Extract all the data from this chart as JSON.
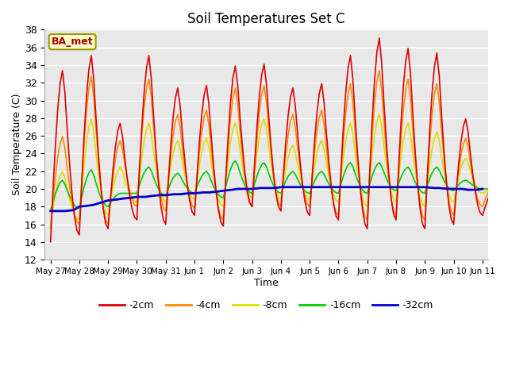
{
  "title": "Soil Temperatures Set C",
  "xlabel": "Time",
  "ylabel": "Soil Temperature (C)",
  "ylim": [
    12,
    38
  ],
  "yticks": [
    12,
    14,
    16,
    18,
    20,
    22,
    24,
    26,
    28,
    30,
    32,
    34,
    36,
    38
  ],
  "annotation": "BA_met",
  "x_tick_labels": [
    "May 27",
    "May 28",
    "May 29",
    "May 30",
    "May 31",
    "Jun 1",
    "Jun 2",
    "Jun 3",
    "Jun 4",
    "Jun 5",
    "Jun 6",
    "Jun 7",
    "Jun 8",
    "Jun 9",
    "Jun 10",
    "Jun 11"
  ],
  "bg_color": "#e8e8e8",
  "grid_color": "#ffffff",
  "series": {
    "-2cm": {
      "color": "#dd0000",
      "lw": 1.2,
      "peaks": [
        14.2,
        33.5,
        14.8,
        35.2,
        15.5,
        31.5,
        16.5,
        34.0,
        15.8,
        34.2,
        17.0,
        31.5,
        17.5,
        32.0,
        16.5,
        35.2,
        15.5,
        37.2,
        16.5,
        36.0,
        15.5,
        35.5,
        16.0,
        28.0,
        17.8,
        26.5,
        17.8,
        26.5,
        18.0,
        29.5,
        17.0,
        20.0
      ],
      "troughs": [
        14.0,
        14.8,
        15.5,
        15.5,
        16.0,
        17.0,
        15.8,
        17.8,
        17.5,
        17.0,
        16.5,
        15.5,
        16.5,
        15.5,
        16.0,
        18.0,
        17.8,
        18.0,
        17.8,
        18.0
      ]
    },
    "-4cm": {
      "color": "#ff8800",
      "lw": 1.2,
      "peaks": [
        15.5,
        26.0,
        16.0,
        32.8,
        16.0,
        25.5,
        18.0,
        32.5,
        17.5,
        28.5,
        17.8,
        29.0,
        16.5,
        31.5,
        18.0,
        31.8,
        18.0,
        28.5,
        18.0,
        29.0,
        17.0,
        32.0,
        16.5,
        33.5,
        17.0,
        32.5,
        16.5,
        32.0,
        17.0,
        25.8,
        18.0,
        20.5
      ],
      "troughs": [
        15.5,
        16.0,
        16.0,
        18.0,
        17.5,
        17.8,
        16.5,
        18.0,
        18.0,
        18.0,
        17.0,
        16.5,
        17.0,
        16.5,
        17.0,
        18.0,
        18.0,
        18.5,
        18.0,
        18.0
      ]
    },
    "-8cm": {
      "color": "#dddd00",
      "lw": 1.2,
      "peaks": [
        16.0,
        22.0,
        16.5,
        28.0,
        17.0,
        22.5,
        18.5,
        27.5,
        18.5,
        25.5,
        18.8,
        25.8,
        18.0,
        27.5,
        19.0,
        28.0,
        18.8,
        25.0,
        18.8,
        25.5,
        18.5,
        27.5,
        18.0,
        28.5,
        18.5,
        27.5,
        18.0,
        26.5,
        18.5,
        23.5,
        19.5,
        20.0
      ],
      "troughs": [
        16.0,
        16.5,
        17.0,
        18.5,
        18.5,
        18.8,
        18.0,
        19.0,
        18.8,
        18.8,
        18.5,
        18.0,
        18.5,
        18.0,
        18.5,
        19.0,
        19.0,
        19.5,
        19.5,
        19.5
      ]
    },
    "-16cm": {
      "color": "#00cc00",
      "lw": 1.2,
      "peaks": [
        17.5,
        21.0,
        17.8,
        22.2,
        18.0,
        19.5,
        19.5,
        22.5,
        19.2,
        21.8,
        19.5,
        22.0,
        19.0,
        23.2,
        19.5,
        23.0,
        19.5,
        22.0,
        19.5,
        22.0,
        19.5,
        23.0,
        19.5,
        23.0,
        19.8,
        22.5,
        19.5,
        22.5,
        19.8,
        21.0,
        20.0,
        20.0
      ],
      "troughs": [
        17.5,
        17.8,
        18.0,
        19.5,
        19.2,
        19.5,
        19.0,
        19.5,
        19.5,
        19.5,
        19.5,
        19.5,
        19.8,
        19.5,
        19.8,
        20.0,
        20.0,
        20.0,
        20.0,
        20.0
      ]
    },
    "-32cm": {
      "color": "#0000cc",
      "lw": 2.0
    }
  },
  "blue_x": [
    0.0,
    0.3,
    0.5,
    0.8,
    1.0,
    1.3,
    1.5,
    1.8,
    2.0,
    2.3,
    2.5,
    2.8,
    3.0,
    3.3,
    3.5,
    3.8,
    4.0,
    4.3,
    4.5,
    4.8,
    5.0,
    5.3,
    5.5,
    5.8,
    6.0,
    6.3,
    6.5,
    6.8,
    7.0,
    7.3,
    7.5,
    7.8,
    8.0,
    8.3,
    8.5,
    8.8,
    9.0,
    9.3,
    9.5,
    9.8,
    10.0,
    10.3,
    10.5,
    10.8,
    11.0,
    11.3,
    11.5,
    11.8,
    12.0,
    12.3,
    12.5,
    12.8,
    13.0,
    13.3,
    13.5,
    13.8,
    14.0,
    14.3,
    14.5,
    14.8,
    15.0
  ],
  "blue_y": [
    17.5,
    17.5,
    17.5,
    17.6,
    18.0,
    18.1,
    18.2,
    18.5,
    18.7,
    18.8,
    18.9,
    19.0,
    19.1,
    19.1,
    19.2,
    19.3,
    19.3,
    19.4,
    19.4,
    19.5,
    19.5,
    19.6,
    19.6,
    19.7,
    19.8,
    19.9,
    20.0,
    20.0,
    20.0,
    20.1,
    20.1,
    20.1,
    20.2,
    20.2,
    20.2,
    20.2,
    20.2,
    20.2,
    20.2,
    20.2,
    20.2,
    20.2,
    20.2,
    20.2,
    20.2,
    20.2,
    20.2,
    20.2,
    20.2,
    20.2,
    20.2,
    20.2,
    20.2,
    20.1,
    20.1,
    20.0,
    20.0,
    20.0,
    19.9,
    19.9,
    20.0
  ]
}
